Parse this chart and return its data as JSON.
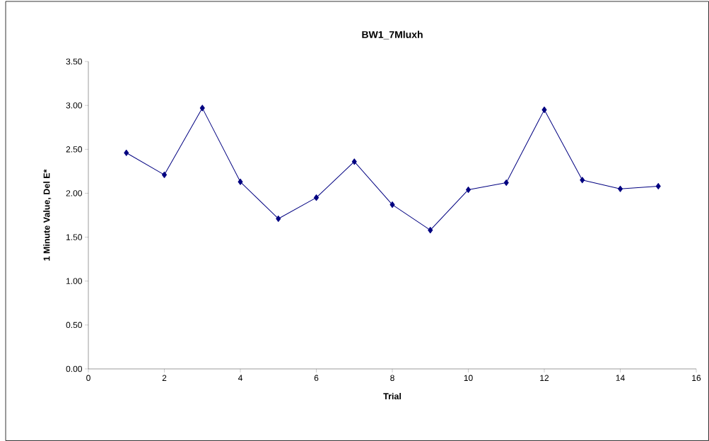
{
  "chart_data": {
    "type": "line",
    "title": "BW1_7Mluxh",
    "xlabel": "Trial",
    "ylabel": "1 Minute Value, Del E*",
    "x": [
      1,
      2,
      3,
      4,
      5,
      6,
      7,
      8,
      9,
      10,
      11,
      12,
      13,
      14,
      15
    ],
    "series": [
      {
        "color": "#000080",
        "values": [
          2.46,
          2.21,
          2.97,
          2.13,
          1.71,
          1.95,
          2.36,
          1.87,
          1.58,
          2.04,
          2.12,
          2.95,
          2.15,
          2.05,
          2.08
        ]
      }
    ],
    "xlim": [
      0,
      16
    ],
    "xticks": [
      0,
      2,
      4,
      6,
      8,
      10,
      12,
      14,
      16
    ],
    "ylim": [
      0,
      3.5
    ],
    "yticks": [
      {
        "value": 0,
        "label": "0.00"
      },
      {
        "value": 0.5,
        "label": "0.50"
      },
      {
        "value": 1,
        "label": "1.00"
      },
      {
        "value": 1.5,
        "label": "1.50"
      },
      {
        "value": 2,
        "label": "2.00"
      },
      {
        "value": 2.5,
        "label": "2.50"
      },
      {
        "value": 3,
        "label": "3.00"
      },
      {
        "value": 3.5,
        "label": "3.50"
      }
    ],
    "grid": false,
    "marker": "diamond",
    "line_style": "solid"
  }
}
